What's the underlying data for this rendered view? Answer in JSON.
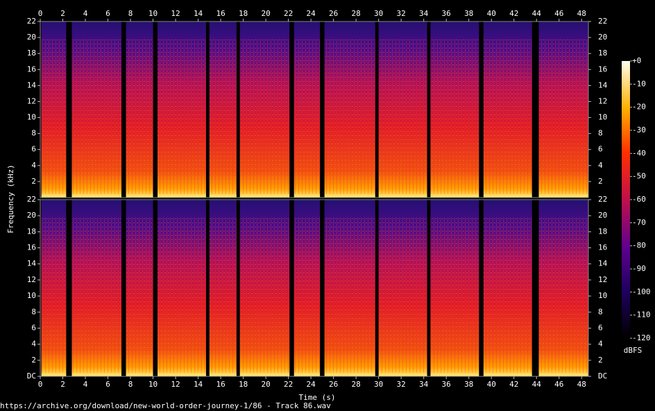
{
  "chart_data": {
    "type": "spectrogram",
    "xlabel": "Time (s)",
    "ylabel": "Frequency (kHz)",
    "footer": "https://archive.org/download/new-world-order-journey-1/86 - Track 86.wav",
    "xlim": [
      0,
      48.6
    ],
    "xticks": [
      0,
      2,
      4,
      6,
      8,
      10,
      12,
      14,
      16,
      18,
      20,
      22,
      24,
      26,
      28,
      30,
      32,
      34,
      36,
      38,
      40,
      42,
      44,
      46,
      48
    ],
    "ylim": [
      0,
      22
    ],
    "yticks": [
      {
        "value": 0,
        "label": "DC"
      },
      2,
      4,
      6,
      8,
      10,
      12,
      14,
      16,
      18,
      20,
      22
    ],
    "channels": 2,
    "segments": [
      [
        0.1,
        2.3
      ],
      [
        2.8,
        7.2
      ],
      [
        7.6,
        10.0
      ],
      [
        10.4,
        14.7
      ],
      [
        15.0,
        17.4
      ],
      [
        17.7,
        22.1
      ],
      [
        22.5,
        24.8
      ],
      [
        25.2,
        29.7
      ],
      [
        30.0,
        34.3
      ],
      [
        34.6,
        38.9
      ],
      [
        39.3,
        43.6
      ],
      [
        44.2,
        48.6
      ]
    ],
    "colorbar": {
      "label": "dBFS",
      "lim": [
        -120,
        0
      ],
      "ticks": [
        {
          "value": 0,
          "label": "+0"
        },
        -10,
        -20,
        -30,
        -40,
        -50,
        -60,
        -70,
        -80,
        -90,
        -100,
        -110,
        -120
      ]
    }
  }
}
